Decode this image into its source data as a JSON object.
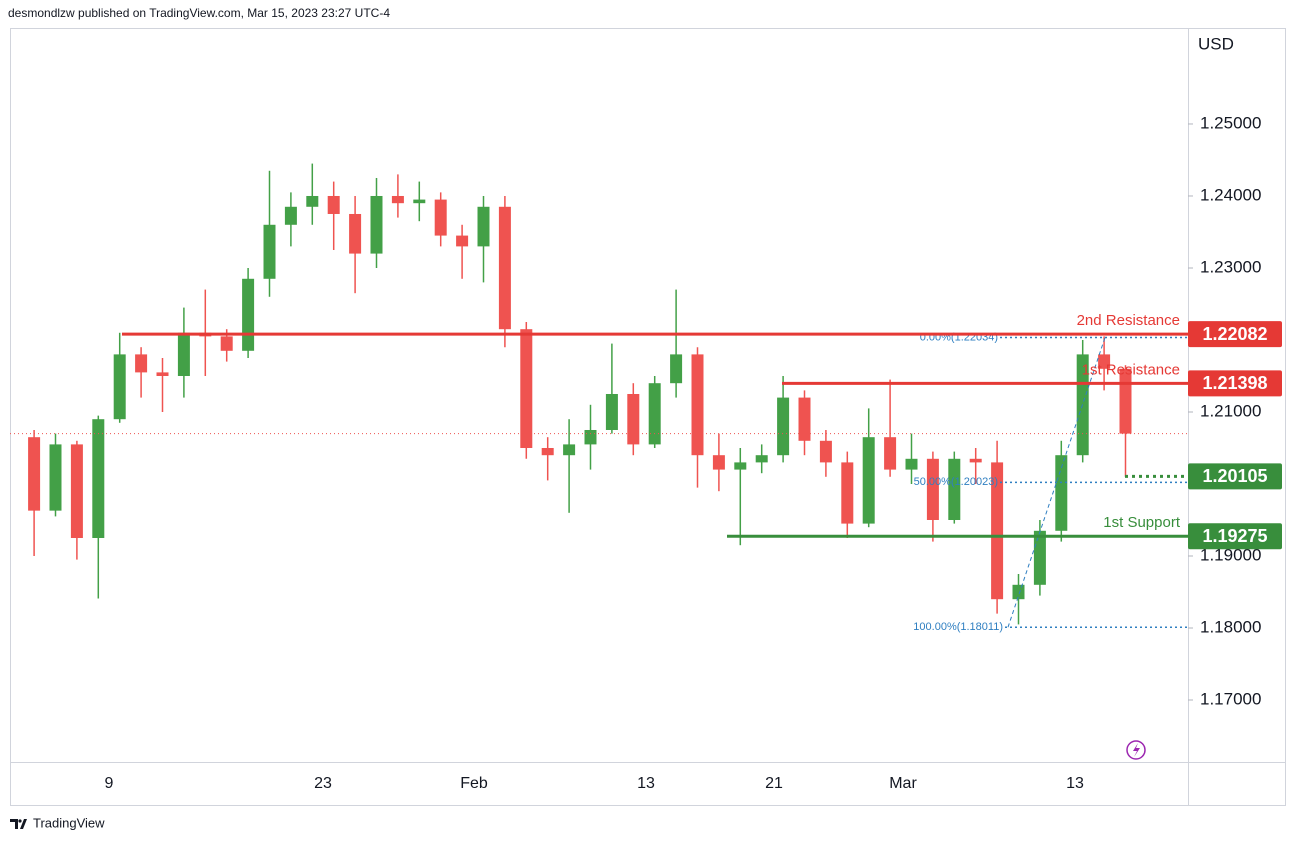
{
  "header": "desmondlzw published on TradingView.com, Mar 15, 2023 23:27 UTC-4",
  "footer": "TradingView",
  "chart_data": {
    "type": "candlestick",
    "currency": "USD",
    "up_color": "#43a047",
    "down_color": "#ef5350",
    "ylim": [
      1.16139,
      1.26333
    ],
    "yticks": [
      {
        "value": 1.25,
        "label": "1.25000"
      },
      {
        "value": 1.24,
        "label": "1.24000"
      },
      {
        "value": 1.23,
        "label": "1.23000"
      },
      {
        "value": 1.21,
        "label": "1.21000"
      },
      {
        "value": 1.19,
        "label": "1.19000"
      },
      {
        "value": 1.18,
        "label": "1.18000"
      },
      {
        "value": 1.17,
        "label": "1.17000"
      }
    ],
    "xticks": [
      "9",
      "23",
      "Feb",
      "13",
      "21",
      "Mar",
      "13"
    ],
    "open": [
      1.2065,
      1.1963,
      1.2055,
      1.1925,
      1.209,
      1.218,
      1.2155,
      1.215,
      1.221,
      1.2205,
      1.2185,
      1.2285,
      1.236,
      1.2385,
      1.24,
      1.2375,
      1.232,
      1.24,
      1.239,
      1.2395,
      1.2345,
      1.233,
      1.2385,
      1.2215,
      1.205,
      1.204,
      1.2055,
      1.2075,
      1.2125,
      1.2055,
      1.214,
      1.218,
      1.204,
      1.202,
      1.203,
      1.204,
      1.212,
      1.206,
      1.203,
      1.1945,
      1.2065,
      1.202,
      1.2035,
      1.195,
      1.2035,
      1.203,
      1.184,
      1.186,
      1.1935,
      1.204,
      1.218,
      1.216
    ],
    "high": [
      1.2075,
      1.207,
      1.206,
      1.2095,
      1.221,
      1.219,
      1.2175,
      1.2245,
      1.227,
      1.2215,
      1.23,
      1.2435,
      1.2405,
      1.2445,
      1.242,
      1.24,
      1.2425,
      1.243,
      1.242,
      1.2405,
      1.236,
      1.24,
      1.24,
      1.2225,
      1.2065,
      1.209,
      1.211,
      1.2195,
      1.214,
      1.215,
      1.227,
      1.219,
      1.207,
      1.205,
      1.2055,
      1.215,
      1.213,
      1.2075,
      1.2045,
      1.2105,
      1.2145,
      1.207,
      1.2045,
      1.2045,
      1.205,
      1.206,
      1.1875,
      1.195,
      1.206,
      1.22,
      1.2205,
      1.2165
    ],
    "low": [
      1.19,
      1.1955,
      1.1895,
      1.1841,
      1.2085,
      1.212,
      1.21,
      1.212,
      1.215,
      1.217,
      1.2175,
      1.226,
      1.233,
      1.236,
      1.2325,
      1.2265,
      1.23,
      1.237,
      1.2365,
      1.233,
      1.2285,
      1.228,
      1.219,
      1.2035,
      1.2005,
      1.196,
      1.202,
      1.207,
      1.204,
      1.205,
      1.212,
      1.1995,
      1.199,
      1.1915,
      1.2015,
      1.203,
      1.204,
      1.201,
      1.1925,
      1.194,
      1.201,
      1.2,
      1.192,
      1.1945,
      1.2,
      1.182,
      1.1805,
      1.1845,
      1.192,
      1.203,
      1.213,
      1.201
    ],
    "close": [
      1.1963,
      1.2055,
      1.1925,
      1.209,
      1.218,
      1.2155,
      1.215,
      1.221,
      1.2205,
      1.2185,
      1.2285,
      1.236,
      1.2385,
      1.24,
      1.2375,
      1.232,
      1.24,
      1.239,
      1.2395,
      1.2345,
      1.233,
      1.2385,
      1.2215,
      1.205,
      1.204,
      1.2055,
      1.2075,
      1.2125,
      1.2055,
      1.214,
      1.218,
      1.204,
      1.202,
      1.203,
      1.204,
      1.212,
      1.206,
      1.203,
      1.1945,
      1.2065,
      1.202,
      1.2035,
      1.195,
      1.2035,
      1.203,
      1.184,
      1.186,
      1.1935,
      1.204,
      1.218,
      1.216,
      1.207
    ],
    "levels": [
      {
        "name": "2nd Resistance",
        "value": 1.22082,
        "color": "#e53935",
        "style": "solid"
      },
      {
        "name": "1st Resistance",
        "value": 1.21398,
        "color": "#e53935",
        "style": "solid"
      },
      {
        "value": 1.20105,
        "color": "#388e3c",
        "style": "dotted"
      },
      {
        "name": "1st Support",
        "value": 1.19275,
        "color": "#388e3c",
        "style": "solid"
      }
    ],
    "fib": {
      "color": "#2f7fc1",
      "levels": [
        {
          "label": "0.00%(1.22034)",
          "value": 1.22034
        },
        {
          "label": "50.00%(1.20023)",
          "value": 1.20023
        },
        {
          "label": "100.00%(1.18011)",
          "value": 1.18011
        }
      ]
    }
  }
}
